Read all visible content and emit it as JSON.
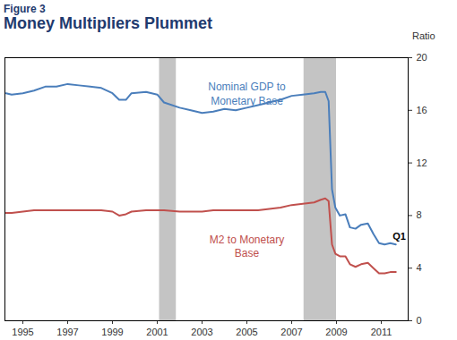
{
  "chart_data": {
    "type": "line",
    "figure": "Figure 3",
    "title": "Money Multipliers Plummet",
    "ylabel": "Ratio",
    "x": [
      1994.25,
      1994.5,
      1995,
      1995.5,
      1996,
      1996.5,
      1997,
      1997.5,
      1998,
      1998.5,
      1999,
      1999.3,
      1999.6,
      1999.85,
      2000.5,
      2001,
      2001.3,
      2002,
      2002.5,
      2003,
      2003.5,
      2004,
      2004.5,
      2005,
      2005.5,
      2006,
      2006.5,
      2007,
      2007.5,
      2008,
      2008.3,
      2008.5,
      2008.65,
      2008.8,
      2008.95,
      2009.15,
      2009.4,
      2009.6,
      2009.85,
      2010.1,
      2010.4,
      2010.65,
      2010.9,
      2011.15,
      2011.4,
      2011.65
    ],
    "series": [
      {
        "name": "Nominal GDP to\nMonetary Base",
        "color": "#4a7ebb",
        "label_at": [
          2005,
          17.3
        ],
        "values": [
          17.3,
          17.2,
          17.3,
          17.5,
          17.8,
          17.8,
          18.0,
          17.9,
          17.8,
          17.7,
          17.3,
          16.8,
          16.8,
          17.3,
          17.4,
          17.2,
          16.6,
          16.2,
          16.0,
          15.8,
          15.9,
          16.1,
          16.0,
          16.2,
          16.4,
          16.6,
          16.8,
          17.1,
          17.2,
          17.3,
          17.4,
          17.4,
          16.7,
          10.0,
          8.6,
          8.0,
          8.1,
          7.1,
          7.0,
          7.3,
          7.4,
          6.6,
          5.9,
          5.8,
          5.9,
          5.8
        ]
      },
      {
        "name": "M2 to Monetary\nBase",
        "color": "#c0504d",
        "label_at": [
          2005,
          5.7
        ],
        "values": [
          8.2,
          8.2,
          8.3,
          8.4,
          8.4,
          8.4,
          8.4,
          8.4,
          8.4,
          8.4,
          8.3,
          8.0,
          8.1,
          8.3,
          8.4,
          8.4,
          8.4,
          8.3,
          8.3,
          8.3,
          8.4,
          8.4,
          8.4,
          8.4,
          8.4,
          8.5,
          8.6,
          8.8,
          8.9,
          9.0,
          9.2,
          9.3,
          9.1,
          5.8,
          5.1,
          4.9,
          4.9,
          4.3,
          4.1,
          4.3,
          4.4,
          4.0,
          3.6,
          3.6,
          3.7,
          3.7
        ]
      }
    ],
    "shaded_ranges": [
      [
        2001.1,
        2001.85
      ],
      [
        2007.55,
        2009.0
      ]
    ],
    "annotations": [
      {
        "text": "Q1",
        "x": 2011.8,
        "y": 6.4
      }
    ],
    "xlim": [
      1994.2,
      2012.2
    ],
    "xticks": [
      1995,
      1997,
      1999,
      2001,
      2003,
      2005,
      2007,
      2009,
      2011
    ],
    "ylim": [
      0,
      20
    ],
    "yticks": [
      0,
      4,
      8,
      12,
      16,
      20
    ],
    "grid": false
  }
}
